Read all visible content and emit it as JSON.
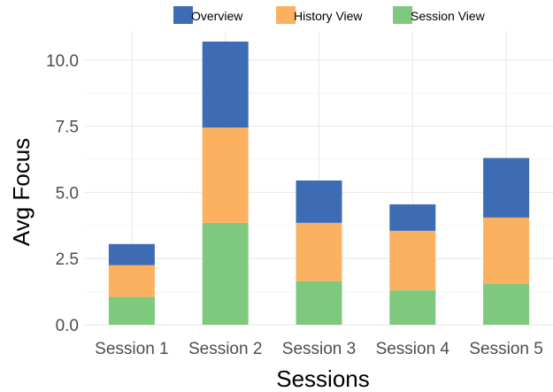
{
  "chart_data": {
    "type": "bar",
    "stacked": true,
    "title": "",
    "xlabel": "Sessions",
    "ylabel": "Avg Focus",
    "categories": [
      "Session 1",
      "Session 2",
      "Session 3",
      "Session 4",
      "Session 5"
    ],
    "series": [
      {
        "name": "Session View",
        "color": "#7fc97f",
        "values": [
          1.05,
          3.85,
          1.65,
          1.3,
          1.55
        ]
      },
      {
        "name": "History View",
        "color": "#fbb15f",
        "values": [
          1.2,
          3.6,
          2.2,
          2.25,
          2.5
        ]
      },
      {
        "name": "Overview",
        "color": "#3d6cb5",
        "values": [
          0.8,
          3.25,
          1.6,
          1.0,
          2.25
        ]
      }
    ],
    "legend_order": [
      "Overview",
      "History View",
      "Session View"
    ],
    "legend_position": "top",
    "ylim": [
      0,
      11.1
    ],
    "yticks": [
      0,
      2.5,
      5,
      7.5,
      10
    ],
    "ytick_labels": [
      "0.0",
      "2.5",
      "5.0",
      "7.5",
      "10.0"
    ],
    "grid": true
  }
}
